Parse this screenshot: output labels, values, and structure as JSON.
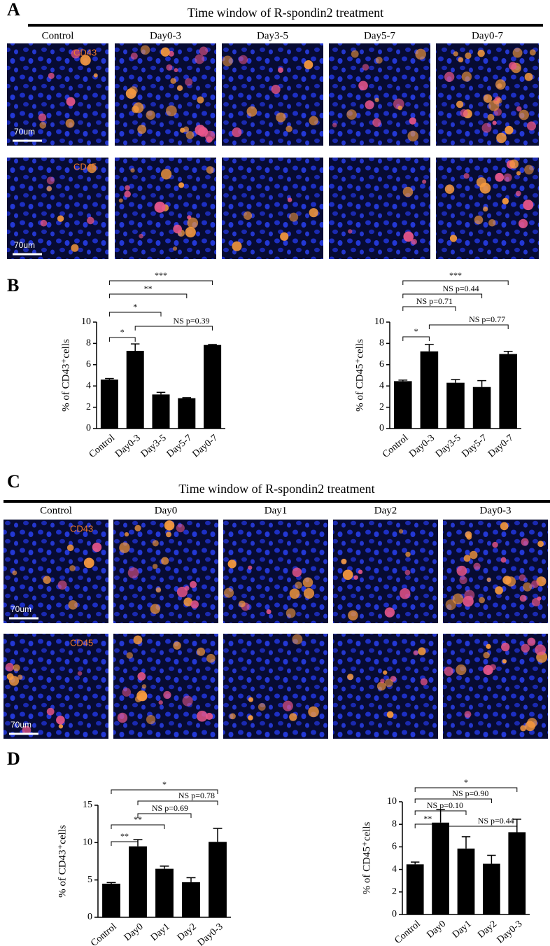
{
  "panel_a": {
    "letter": "A",
    "title": "Time window of R-spondin2 treatment",
    "columns": [
      "Control",
      "Day0-3",
      "Day3-5",
      "Day5-7",
      "Day0-7"
    ],
    "row_labels": [
      "CD43",
      "CD45"
    ],
    "scale_label": "70um"
  },
  "panel_b": {
    "letter": "B"
  },
  "panel_c": {
    "letter": "C",
    "title": "Time window of R-spondin2 treatment",
    "columns": [
      "Control",
      "Day0",
      "Day1",
      "Day2",
      "Day0-3"
    ],
    "row_labels": [
      "CD43",
      "CD45"
    ],
    "scale_label": "70um"
  },
  "panel_d": {
    "letter": "D"
  },
  "chart_data": [
    {
      "type": "bar",
      "ylabel": "% of CD43⁺cells",
      "categories": [
        "Control",
        "Day0-3",
        "Day3-5",
        "Day5-7",
        "Day0-7"
      ],
      "values": [
        4.6,
        7.3,
        3.2,
        2.85,
        7.85
      ],
      "errors": [
        0.1,
        0.65,
        0.2,
        0.05,
        0.05
      ],
      "color": "#000000",
      "ylim": [
        0,
        10
      ],
      "yticks": [
        0,
        2,
        4,
        6,
        8,
        10
      ],
      "annotations": [
        {
          "groups": [
            0,
            4
          ],
          "label": "***"
        },
        {
          "groups": [
            0,
            3
          ],
          "label": "**"
        },
        {
          "groups": [
            0,
            2
          ],
          "label": "*"
        },
        {
          "groups": [
            1,
            4
          ],
          "label": "NS p=0.39"
        },
        {
          "groups": [
            0,
            1
          ],
          "label": "*"
        }
      ]
    },
    {
      "type": "bar",
      "ylabel": "% of CD45⁺cells",
      "categories": [
        "Control",
        "Day0-3",
        "Day3-5",
        "Day5-7",
        "Day0-7"
      ],
      "values": [
        4.45,
        7.25,
        4.3,
        3.9,
        7.0
      ],
      "errors": [
        0.1,
        0.65,
        0.3,
        0.6,
        0.25
      ],
      "color": "#000000",
      "ylim": [
        0,
        10
      ],
      "yticks": [
        0,
        2,
        4,
        6,
        8,
        10
      ],
      "annotations": [
        {
          "groups": [
            0,
            4
          ],
          "label": "***"
        },
        {
          "groups": [
            0,
            3
          ],
          "label": "NS p=0.44"
        },
        {
          "groups": [
            0,
            2
          ],
          "label": "NS p=0.71"
        },
        {
          "groups": [
            1,
            4
          ],
          "label": "NS p=0.77"
        },
        {
          "groups": [
            0,
            1
          ],
          "label": "*"
        }
      ]
    },
    {
      "type": "bar",
      "ylabel": "% of CD43⁺cells",
      "categories": [
        "Control",
        "Day0",
        "Day1",
        "Day2",
        "Day0-3"
      ],
      "values": [
        4.5,
        9.5,
        6.5,
        4.7,
        10.1
      ],
      "errors": [
        0.15,
        0.9,
        0.35,
        0.6,
        1.8
      ],
      "color": "#000000",
      "ylim": [
        0,
        15
      ],
      "yticks": [
        0,
        5,
        10,
        15
      ],
      "annotations": [
        {
          "groups": [
            0,
            4
          ],
          "label": "*"
        },
        {
          "groups": [
            1,
            4
          ],
          "label": "NS p=0.78"
        },
        {
          "groups": [
            1,
            3
          ],
          "label": "NS p=0.69"
        },
        {
          "groups": [
            0,
            2
          ],
          "label": "**"
        },
        {
          "groups": [
            0,
            1
          ],
          "label": "**"
        }
      ]
    },
    {
      "type": "bar",
      "ylabel": "% of CD45⁺cells",
      "categories": [
        "Control",
        "Day0",
        "Day1",
        "Day2",
        "Day0-3"
      ],
      "values": [
        4.45,
        8.15,
        5.85,
        4.5,
        7.3
      ],
      "errors": [
        0.2,
        1.15,
        1.05,
        0.75,
        1.15
      ],
      "color": "#000000",
      "ylim": [
        0,
        10
      ],
      "yticks": [
        0,
        2,
        4,
        6,
        8,
        10
      ],
      "annotations": [
        {
          "groups": [
            0,
            4
          ],
          "label": "*"
        },
        {
          "groups": [
            0,
            3
          ],
          "label": "NS p=0.90"
        },
        {
          "groups": [
            0,
            2
          ],
          "label": "NS p=0.10"
        },
        {
          "groups": [
            0,
            1
          ],
          "label": "**"
        },
        {
          "groups": [
            1,
            4
          ],
          "label": "NS p=0.44"
        }
      ]
    }
  ]
}
